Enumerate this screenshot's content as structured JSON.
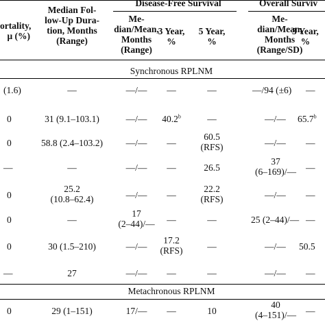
{
  "header": {
    "mortality": [
      "ortality,",
      "μ (%)"
    ],
    "followup": [
      "Median Fol-",
      "low-Up Dura-",
      "tion, Months",
      "(Range)"
    ],
    "dfs_group": "Disease-Free Survival",
    "os_group": "Overall Surviv",
    "dfs_median": [
      "Me-",
      "dian/Mean,",
      "Months",
      "(Range)"
    ],
    "dfs_3y": [
      "3 Year,",
      "%"
    ],
    "dfs_5y": [
      "5 Year,",
      "%"
    ],
    "os_median": [
      "Me-",
      "dian/Mean,",
      "Months",
      "(Range/SD)"
    ],
    "os_3y": [
      "3 Year,",
      "%"
    ]
  },
  "sections": {
    "synchronous": "Synchronous RPLNM",
    "metachronous": "Metachronous RPLNM"
  },
  "rows": {
    "r1": {
      "mort": "(1.6)",
      "fu": "—",
      "dfs_med": "—/—",
      "dfs3": "—",
      "dfs5": "—",
      "os_med": "—/94 (±6)",
      "os3": "—"
    },
    "r2": {
      "mort": "0",
      "fu": "31 (9.1–103.1)",
      "dfs_med": "—/—",
      "dfs3": "40.2",
      "dfs3_sup": "b",
      "dfs5": "—",
      "os_med": "—/—",
      "os3": "65.7",
      "os3_sup": "b"
    },
    "r3": {
      "mort": "0",
      "fu": "58.8 (2.4–103.2)",
      "dfs_med": "—/—",
      "dfs3": "—",
      "dfs5": [
        "60.5",
        "(RFS)"
      ],
      "os_med": "—/—",
      "os3": "—"
    },
    "r4": {
      "mort": "—",
      "fu": "—",
      "dfs_med": "—/—",
      "dfs3": "—",
      "dfs5": "26.5",
      "os_med": [
        "37",
        "(6–169)/—"
      ],
      "os3": "—"
    },
    "r5": {
      "mort": "0",
      "fu": [
        "25.2",
        "(10.8–62.4)"
      ],
      "dfs_med": "—/—",
      "dfs3": "—",
      "dfs5": [
        "22.2",
        "(RFS)"
      ],
      "os_med": "—/—",
      "os3": "—"
    },
    "r6": {
      "mort": "0",
      "fu": "—",
      "dfs_med": [
        "17",
        "(2–44)/—"
      ],
      "dfs3": "—",
      "dfs5": "—",
      "os_med": "25 (2–44)/—",
      "os3": "—"
    },
    "r7": {
      "mort": "0",
      "fu": "30 (1.5–210)",
      "dfs_med": "—/—",
      "dfs3": [
        "17.2",
        "(RFS)"
      ],
      "dfs5": "—",
      "os_med": "—/—",
      "os3": "50.5"
    },
    "r8": {
      "mort": "—",
      "fu": "27",
      "dfs_med": "—/—",
      "dfs3": "—",
      "dfs5": "—",
      "os_med": "—/—",
      "os3": "—"
    },
    "r9": {
      "mort": "0",
      "fu": "29 (1–151)",
      "dfs_med": "17/—",
      "dfs3": "—",
      "dfs5": "10",
      "os_med": [
        "40",
        "(4–151)/—"
      ],
      "os3": "—"
    }
  }
}
